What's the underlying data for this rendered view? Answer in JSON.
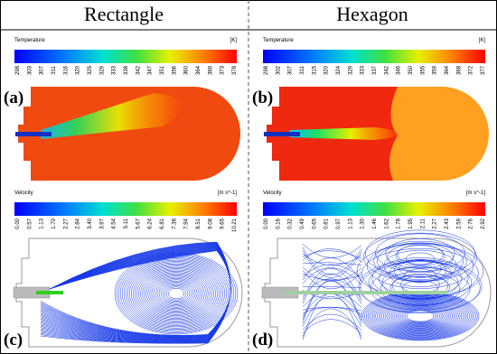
{
  "panels": [
    {
      "title": "Rectangle",
      "temperature": {
        "label": "(a)",
        "title": "Temperature",
        "unit": "[K]",
        "ticks": [
          "298",
          "303",
          "307",
          "311",
          "316",
          "320",
          "325",
          "329",
          "333",
          "338",
          "342",
          "347",
          "351",
          "356",
          "360",
          "364",
          "369",
          "373",
          "378"
        ]
      },
      "velocity": {
        "label": "(c)",
        "title": "Velocity",
        "unit": "[m s^-1]",
        "ticks": [
          "0.00",
          "0.57",
          "1.13",
          "1.70",
          "2.27",
          "2.84",
          "3.40",
          "3.97",
          "4.54",
          "5.11",
          "5.67",
          "6.24",
          "6.81",
          "7.38",
          "7.94",
          "8.51",
          "9.08",
          "9.65",
          "10.21"
        ]
      }
    },
    {
      "title": "Hexagon",
      "temperature": {
        "label": "(b)",
        "title": "Temperature",
        "unit": "[K]",
        "ticks": [
          "298",
          "302",
          "307",
          "311",
          "315",
          "320",
          "324",
          "329",
          "333",
          "337",
          "342",
          "346",
          "350",
          "355",
          "359",
          "364",
          "368",
          "372",
          "377"
        ]
      },
      "velocity": {
        "label": "(d)",
        "title": "Velocity",
        "unit": "[m s^-1]",
        "ticks": [
          "0.00",
          "0.16",
          "0.32",
          "0.49",
          "0.65",
          "0.81",
          "0.97",
          "1.13",
          "1.30",
          "1.46",
          "1.62",
          "1.78",
          "1.95",
          "2.11",
          "2.27",
          "2.43",
          "2.59",
          "2.76",
          "2.92"
        ]
      }
    }
  ]
}
